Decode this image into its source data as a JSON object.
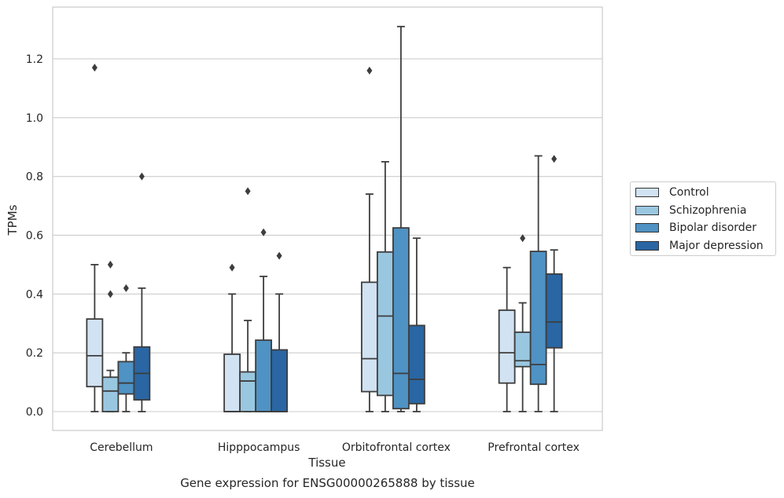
{
  "chart_data": {
    "type": "box",
    "xlabel": "Tissue",
    "ylabel": "TPMs",
    "caption": "Gene expression for ENSG00000265888 by tissue",
    "ylim": [
      -0.065,
      1.37
    ],
    "yticks": [
      "0.0",
      "0.2",
      "0.4",
      "0.6",
      "0.8",
      "1.0",
      "1.2"
    ],
    "grid": "horizontal",
    "legend_position": "right",
    "categories": [
      "Cerebellum",
      "Hipppocampus",
      "Orbitofrontal cortex",
      "Prefrontal cortex"
    ],
    "series": [
      {
        "name": "Control",
        "color": "#d1e2f2",
        "boxes": [
          {
            "whislo": 0.0,
            "q1": 0.085,
            "med": 0.19,
            "q3": 0.315,
            "whishi": 0.5,
            "fliers": [
              1.17
            ]
          },
          {
            "whislo": 0.0,
            "q1": 0.0,
            "med": 0.0,
            "q3": 0.195,
            "whishi": 0.4,
            "fliers": [
              0.49
            ]
          },
          {
            "whislo": 0.0,
            "q1": 0.068,
            "med": 0.18,
            "q3": 0.44,
            "whishi": 0.74,
            "fliers": [
              1.16
            ]
          },
          {
            "whislo": 0.0,
            "q1": 0.097,
            "med": 0.2,
            "q3": 0.345,
            "whishi": 0.49,
            "fliers": []
          }
        ]
      },
      {
        "name": "Schizophrenia",
        "color": "#9ac7e0",
        "boxes": [
          {
            "whislo": 0.0,
            "q1": 0.0,
            "med": 0.07,
            "q3": 0.117,
            "whishi": 0.14,
            "fliers": [
              0.5,
              0.4
            ]
          },
          {
            "whislo": 0.0,
            "q1": 0.0,
            "med": 0.104,
            "q3": 0.135,
            "whishi": 0.31,
            "fliers": [
              0.75
            ]
          },
          {
            "whislo": 0.0,
            "q1": 0.055,
            "med": 0.325,
            "q3": 0.543,
            "whishi": 0.85,
            "fliers": []
          },
          {
            "whislo": 0.0,
            "q1": 0.153,
            "med": 0.173,
            "q3": 0.27,
            "whishi": 0.37,
            "fliers": [
              0.59
            ]
          }
        ]
      },
      {
        "name": "Bipolar disorder",
        "color": "#4f92c4",
        "boxes": [
          {
            "whislo": 0.0,
            "q1": 0.06,
            "med": 0.097,
            "q3": 0.17,
            "whishi": 0.2,
            "fliers": [
              0.42
            ]
          },
          {
            "whislo": 0.0,
            "q1": 0.0,
            "med": 0.0,
            "q3": 0.243,
            "whishi": 0.46,
            "fliers": [
              0.61
            ]
          },
          {
            "whislo": 0.0,
            "q1": 0.01,
            "med": 0.13,
            "q3": 0.625,
            "whishi": 1.31,
            "fliers": []
          },
          {
            "whislo": 0.0,
            "q1": 0.093,
            "med": 0.16,
            "q3": 0.545,
            "whishi": 0.87,
            "fliers": []
          }
        ]
      },
      {
        "name": "Major depression",
        "color": "#2966a3",
        "boxes": [
          {
            "whislo": 0.0,
            "q1": 0.04,
            "med": 0.13,
            "q3": 0.22,
            "whishi": 0.42,
            "fliers": [
              0.8
            ]
          },
          {
            "whislo": 0.0,
            "q1": 0.0,
            "med": 0.0,
            "q3": 0.21,
            "whishi": 0.4,
            "fliers": [
              0.53
            ]
          },
          {
            "whislo": 0.0,
            "q1": 0.027,
            "med": 0.11,
            "q3": 0.293,
            "whishi": 0.59,
            "fliers": []
          },
          {
            "whislo": 0.0,
            "q1": 0.217,
            "med": 0.305,
            "q3": 0.468,
            "whishi": 0.55,
            "fliers": [
              0.86
            ]
          }
        ]
      }
    ]
  }
}
